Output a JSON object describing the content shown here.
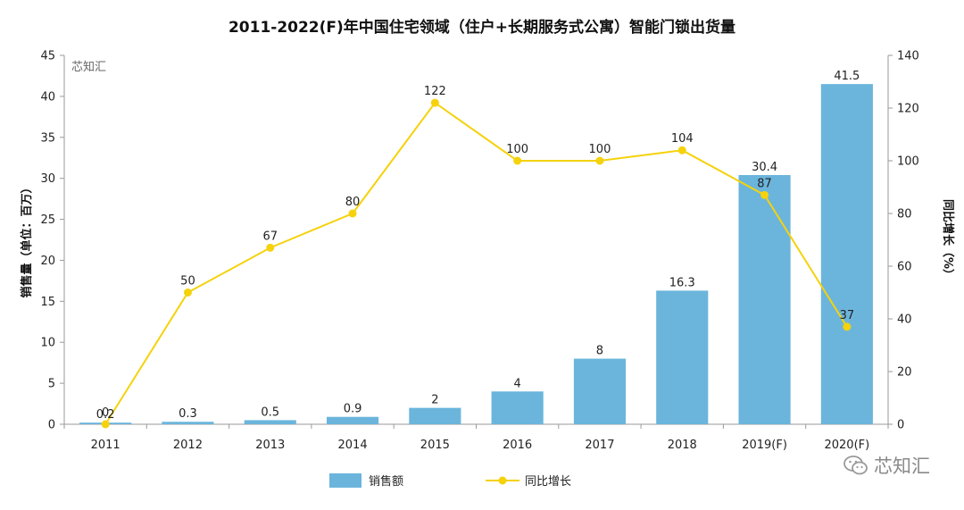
{
  "chart_data": {
    "type": "bar+line",
    "title": "2011-2022(F)年中国住宅领域（住户+长期服务式公寓）智能门锁出货量",
    "categories": [
      "2011",
      "2012",
      "2013",
      "2014",
      "2015",
      "2016",
      "2017",
      "2018",
      "2019(F)",
      "2020(F)"
    ],
    "series": [
      {
        "name": "销售额",
        "type": "bar",
        "axis": "left",
        "color": "#6bb5dc",
        "values": [
          0.2,
          0.3,
          0.5,
          0.9,
          2,
          4,
          8,
          16.3,
          30.4,
          41.5
        ],
        "labels": [
          "0.2",
          "0.3",
          "0.5",
          "0.9",
          "2",
          "4",
          "8",
          "16.3",
          "30.4",
          "41.5"
        ]
      },
      {
        "name": "同比增长",
        "type": "line",
        "axis": "right",
        "color": "#f5d20c",
        "values": [
          0,
          50,
          67,
          80,
          122,
          100,
          100,
          104,
          87,
          37
        ],
        "labels": [
          "0",
          "50",
          "67",
          "80",
          "122",
          "100",
          "100",
          "104",
          "87",
          "37"
        ]
      }
    ],
    "ylabel_left": "销售量（单位：百万）",
    "ylabel_right": "同比增长（%）",
    "ylim_left": [
      0,
      45
    ],
    "yticks_left": [
      "0",
      "5",
      "10",
      "15",
      "20",
      "25",
      "30",
      "35",
      "40",
      "45"
    ],
    "ylim_right": [
      0,
      140
    ],
    "yticks_right": [
      "0",
      "20",
      "40",
      "60",
      "80",
      "100",
      "120",
      "140"
    ],
    "grid": false,
    "legend_position": "bottom-center"
  },
  "watermark_inner": "芯知汇",
  "watermark_corner": "芯知汇"
}
